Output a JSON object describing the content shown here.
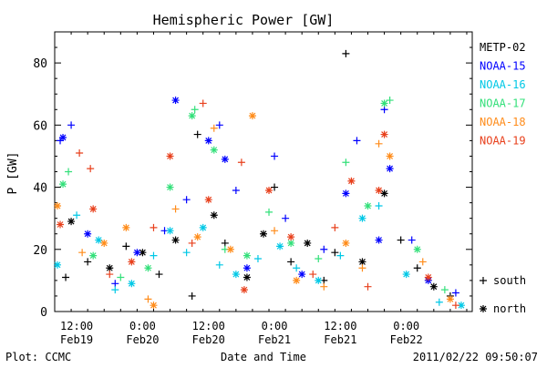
{
  "chart_data": {
    "type": "scatter",
    "title": "Hemispheric Power [GW]",
    "xlabel": "Date and Time",
    "ylabel": "P [GW]",
    "ylim": [
      0,
      90
    ],
    "xlim": [
      "2011-02-19 08:00",
      "2011-02-22 12:00"
    ],
    "y_ticks": [
      0,
      20,
      40,
      60,
      80
    ],
    "x_ticks": [
      {
        "at": "2011-02-19 12:00",
        "line1": "12:00",
        "line2": "Feb19"
      },
      {
        "at": "2011-02-20 00:00",
        "line1": "0:00",
        "line2": "Feb20"
      },
      {
        "at": "2011-02-20 12:00",
        "line1": "12:00",
        "line2": "Feb20"
      },
      {
        "at": "2011-02-21 00:00",
        "line1": "0:00",
        "line2": "Feb21"
      },
      {
        "at": "2011-02-21 12:00",
        "line1": "12:00",
        "line2": "Feb21"
      },
      {
        "at": "2011-02-22 00:00",
        "line1": "0:00",
        "line2": "Feb22"
      }
    ],
    "grid": false,
    "legend_position": "right",
    "marker_legend": [
      {
        "symbol": "+",
        "label": "south"
      },
      {
        "symbol": "*",
        "label": "north"
      }
    ],
    "series": [
      {
        "name": "METP-02",
        "color": "#000000",
        "points": [
          {
            "x": "2011-02-19 10:00",
            "y": 11,
            "m": "+"
          },
          {
            "x": "2011-02-19 11:00",
            "y": 29,
            "m": "*"
          },
          {
            "x": "2011-02-19 14:00",
            "y": 16,
            "m": "+"
          },
          {
            "x": "2011-02-19 18:00",
            "y": 14,
            "m": "*"
          },
          {
            "x": "2011-02-19 21:00",
            "y": 21,
            "m": "+"
          },
          {
            "x": "2011-02-20 00:00",
            "y": 19,
            "m": "*"
          },
          {
            "x": "2011-02-20 03:00",
            "y": 12,
            "m": "+"
          },
          {
            "x": "2011-02-20 06:00",
            "y": 23,
            "m": "*"
          },
          {
            "x": "2011-02-20 09:00",
            "y": 5,
            "m": "+"
          },
          {
            "x": "2011-02-20 10:00",
            "y": 57,
            "m": "+"
          },
          {
            "x": "2011-02-20 13:00",
            "y": 31,
            "m": "*"
          },
          {
            "x": "2011-02-20 15:00",
            "y": 22,
            "m": "+"
          },
          {
            "x": "2011-02-20 19:00",
            "y": 11,
            "m": "*"
          },
          {
            "x": "2011-02-20 22:00",
            "y": 25,
            "m": "*"
          },
          {
            "x": "2011-02-21 00:00",
            "y": 40,
            "m": "+"
          },
          {
            "x": "2011-02-21 03:00",
            "y": 16,
            "m": "+"
          },
          {
            "x": "2011-02-21 06:00",
            "y": 22,
            "m": "*"
          },
          {
            "x": "2011-02-21 09:00",
            "y": 10,
            "m": "+"
          },
          {
            "x": "2011-02-21 11:00",
            "y": 19,
            "m": "+"
          },
          {
            "x": "2011-02-21 13:00",
            "y": 83,
            "m": "+"
          },
          {
            "x": "2011-02-21 16:00",
            "y": 16,
            "m": "*"
          },
          {
            "x": "2011-02-21 20:00",
            "y": 38,
            "m": "*"
          },
          {
            "x": "2011-02-21 23:00",
            "y": 23,
            "m": "+"
          },
          {
            "x": "2011-02-22 02:00",
            "y": 14,
            "m": "+"
          },
          {
            "x": "2011-02-22 05:00",
            "y": 8,
            "m": "*"
          },
          {
            "x": "2011-02-22 08:00",
            "y": 5,
            "m": "+"
          }
        ]
      },
      {
        "name": "NOAA-15",
        "color": "#0000ff",
        "points": [
          {
            "x": "2011-02-19 09:00",
            "y": 55,
            "m": "+"
          },
          {
            "x": "2011-02-19 09:30",
            "y": 56,
            "m": "*"
          },
          {
            "x": "2011-02-19 11:00",
            "y": 60,
            "m": "+"
          },
          {
            "x": "2011-02-19 14:00",
            "y": 25,
            "m": "*"
          },
          {
            "x": "2011-02-19 19:00",
            "y": 9,
            "m": "+"
          },
          {
            "x": "2011-02-19 23:00",
            "y": 19,
            "m": "*"
          },
          {
            "x": "2011-02-20 04:00",
            "y": 26,
            "m": "+"
          },
          {
            "x": "2011-02-20 06:00",
            "y": 68,
            "m": "*"
          },
          {
            "x": "2011-02-20 08:00",
            "y": 36,
            "m": "+"
          },
          {
            "x": "2011-02-20 12:00",
            "y": 55,
            "m": "*"
          },
          {
            "x": "2011-02-20 14:00",
            "y": 60,
            "m": "+"
          },
          {
            "x": "2011-02-20 15:00",
            "y": 49,
            "m": "*"
          },
          {
            "x": "2011-02-20 17:00",
            "y": 39,
            "m": "+"
          },
          {
            "x": "2011-02-20 19:00",
            "y": 14,
            "m": "*"
          },
          {
            "x": "2011-02-21 00:00",
            "y": 50,
            "m": "+"
          },
          {
            "x": "2011-02-21 02:00",
            "y": 30,
            "m": "+"
          },
          {
            "x": "2011-02-21 05:00",
            "y": 12,
            "m": "*"
          },
          {
            "x": "2011-02-21 09:00",
            "y": 20,
            "m": "+"
          },
          {
            "x": "2011-02-21 13:00",
            "y": 38,
            "m": "*"
          },
          {
            "x": "2011-02-21 15:00",
            "y": 55,
            "m": "+"
          },
          {
            "x": "2011-02-21 19:00",
            "y": 23,
            "m": "*"
          },
          {
            "x": "2011-02-21 20:00",
            "y": 65,
            "m": "+"
          },
          {
            "x": "2011-02-21 21:00",
            "y": 46,
            "m": "*"
          },
          {
            "x": "2011-02-22 01:00",
            "y": 23,
            "m": "+"
          },
          {
            "x": "2011-02-22 04:00",
            "y": 10,
            "m": "*"
          },
          {
            "x": "2011-02-22 09:00",
            "y": 6,
            "m": "+"
          }
        ]
      },
      {
        "name": "NOAA-16",
        "color": "#00c8e6",
        "points": [
          {
            "x": "2011-02-19 08:30",
            "y": 15,
            "m": "*"
          },
          {
            "x": "2011-02-19 12:00",
            "y": 31,
            "m": "+"
          },
          {
            "x": "2011-02-19 16:00",
            "y": 23,
            "m": "*"
          },
          {
            "x": "2011-02-19 19:00",
            "y": 7,
            "m": "+"
          },
          {
            "x": "2011-02-19 22:00",
            "y": 9,
            "m": "*"
          },
          {
            "x": "2011-02-20 02:00",
            "y": 18,
            "m": "+"
          },
          {
            "x": "2011-02-20 05:00",
            "y": 26,
            "m": "*"
          },
          {
            "x": "2011-02-20 08:00",
            "y": 19,
            "m": "+"
          },
          {
            "x": "2011-02-20 11:00",
            "y": 27,
            "m": "*"
          },
          {
            "x": "2011-02-20 14:00",
            "y": 15,
            "m": "+"
          },
          {
            "x": "2011-02-20 17:00",
            "y": 12,
            "m": "*"
          },
          {
            "x": "2011-02-20 21:00",
            "y": 17,
            "m": "+"
          },
          {
            "x": "2011-02-21 01:00",
            "y": 21,
            "m": "*"
          },
          {
            "x": "2011-02-21 04:00",
            "y": 14,
            "m": "+"
          },
          {
            "x": "2011-02-21 08:00",
            "y": 10,
            "m": "*"
          },
          {
            "x": "2011-02-21 12:00",
            "y": 18,
            "m": "+"
          },
          {
            "x": "2011-02-21 16:00",
            "y": 30,
            "m": "*"
          },
          {
            "x": "2011-02-21 19:00",
            "y": 34,
            "m": "+"
          },
          {
            "x": "2011-02-22 00:00",
            "y": 12,
            "m": "*"
          },
          {
            "x": "2011-02-22 06:00",
            "y": 3,
            "m": "+"
          },
          {
            "x": "2011-02-22 10:00",
            "y": 2,
            "m": "*"
          }
        ]
      },
      {
        "name": "NOAA-17",
        "color": "#33e07a",
        "points": [
          {
            "x": "2011-02-19 09:30",
            "y": 41,
            "m": "*"
          },
          {
            "x": "2011-02-19 10:30",
            "y": 45,
            "m": "+"
          },
          {
            "x": "2011-02-19 15:00",
            "y": 18,
            "m": "*"
          },
          {
            "x": "2011-02-19 20:00",
            "y": 11,
            "m": "+"
          },
          {
            "x": "2011-02-20 01:00",
            "y": 14,
            "m": "*"
          },
          {
            "x": "2011-02-20 05:00",
            "y": 40,
            "m": "*"
          },
          {
            "x": "2011-02-20 09:00",
            "y": 63,
            "m": "*"
          },
          {
            "x": "2011-02-20 09:30",
            "y": 65,
            "m": "+"
          },
          {
            "x": "2011-02-20 13:00",
            "y": 52,
            "m": "*"
          },
          {
            "x": "2011-02-20 15:00",
            "y": 20,
            "m": "+"
          },
          {
            "x": "2011-02-20 19:00",
            "y": 18,
            "m": "*"
          },
          {
            "x": "2011-02-20 23:00",
            "y": 32,
            "m": "+"
          },
          {
            "x": "2011-02-21 03:00",
            "y": 22,
            "m": "*"
          },
          {
            "x": "2011-02-21 08:00",
            "y": 17,
            "m": "+"
          },
          {
            "x": "2011-02-21 13:00",
            "y": 48,
            "m": "+"
          },
          {
            "x": "2011-02-21 17:00",
            "y": 34,
            "m": "*"
          },
          {
            "x": "2011-02-21 20:00",
            "y": 67,
            "m": "*"
          },
          {
            "x": "2011-02-21 21:00",
            "y": 68,
            "m": "+"
          },
          {
            "x": "2011-02-22 02:00",
            "y": 20,
            "m": "*"
          },
          {
            "x": "2011-02-22 07:00",
            "y": 7,
            "m": "+"
          }
        ]
      },
      {
        "name": "NOAA-18",
        "color": "#ff8c1a",
        "points": [
          {
            "x": "2011-02-19 08:30",
            "y": 34,
            "m": "*"
          },
          {
            "x": "2011-02-19 13:00",
            "y": 19,
            "m": "+"
          },
          {
            "x": "2011-02-19 17:00",
            "y": 22,
            "m": "*"
          },
          {
            "x": "2011-02-19 21:00",
            "y": 27,
            "m": "*"
          },
          {
            "x": "2011-02-20 01:00",
            "y": 4,
            "m": "+"
          },
          {
            "x": "2011-02-20 02:00",
            "y": 2,
            "m": "*"
          },
          {
            "x": "2011-02-20 06:00",
            "y": 33,
            "m": "+"
          },
          {
            "x": "2011-02-20 10:00",
            "y": 24,
            "m": "*"
          },
          {
            "x": "2011-02-20 13:00",
            "y": 59,
            "m": "+"
          },
          {
            "x": "2011-02-20 16:00",
            "y": 20,
            "m": "*"
          },
          {
            "x": "2011-02-20 20:00",
            "y": 63,
            "m": "*"
          },
          {
            "x": "2011-02-21 00:00",
            "y": 26,
            "m": "+"
          },
          {
            "x": "2011-02-21 04:00",
            "y": 10,
            "m": "*"
          },
          {
            "x": "2011-02-21 09:00",
            "y": 8,
            "m": "+"
          },
          {
            "x": "2011-02-21 13:00",
            "y": 22,
            "m": "*"
          },
          {
            "x": "2011-02-21 16:00",
            "y": 14,
            "m": "+"
          },
          {
            "x": "2011-02-21 19:00",
            "y": 54,
            "m": "+"
          },
          {
            "x": "2011-02-21 21:00",
            "y": 50,
            "m": "*"
          },
          {
            "x": "2011-02-22 03:00",
            "y": 16,
            "m": "+"
          },
          {
            "x": "2011-02-22 08:00",
            "y": 4,
            "m": "*"
          }
        ]
      },
      {
        "name": "NOAA-19",
        "color": "#e8401c",
        "points": [
          {
            "x": "2011-02-19 09:00",
            "y": 28,
            "m": "*"
          },
          {
            "x": "2011-02-19 12:30",
            "y": 51,
            "m": "+"
          },
          {
            "x": "2011-02-19 14:30",
            "y": 46,
            "m": "+"
          },
          {
            "x": "2011-02-19 15:00",
            "y": 33,
            "m": "*"
          },
          {
            "x": "2011-02-19 18:00",
            "y": 12,
            "m": "+"
          },
          {
            "x": "2011-02-19 22:00",
            "y": 16,
            "m": "*"
          },
          {
            "x": "2011-02-20 02:00",
            "y": 27,
            "m": "+"
          },
          {
            "x": "2011-02-20 05:00",
            "y": 50,
            "m": "*"
          },
          {
            "x": "2011-02-20 09:00",
            "y": 22,
            "m": "+"
          },
          {
            "x": "2011-02-20 11:00",
            "y": 67,
            "m": "+"
          },
          {
            "x": "2011-02-20 12:00",
            "y": 36,
            "m": "*"
          },
          {
            "x": "2011-02-20 18:00",
            "y": 48,
            "m": "+"
          },
          {
            "x": "2011-02-20 18:30",
            "y": 7,
            "m": "*"
          },
          {
            "x": "2011-02-20 23:00",
            "y": 39,
            "m": "*"
          },
          {
            "x": "2011-02-21 03:00",
            "y": 24,
            "m": "*"
          },
          {
            "x": "2011-02-21 07:00",
            "y": 12,
            "m": "+"
          },
          {
            "x": "2011-02-21 11:00",
            "y": 27,
            "m": "+"
          },
          {
            "x": "2011-02-21 14:00",
            "y": 42,
            "m": "*"
          },
          {
            "x": "2011-02-21 17:00",
            "y": 8,
            "m": "+"
          },
          {
            "x": "2011-02-21 19:00",
            "y": 39,
            "m": "*"
          },
          {
            "x": "2011-02-21 20:00",
            "y": 57,
            "m": "*"
          },
          {
            "x": "2011-02-22 04:00",
            "y": 11,
            "m": "*"
          },
          {
            "x": "2011-02-22 09:00",
            "y": 2,
            "m": "+"
          }
        ]
      }
    ]
  },
  "footer": {
    "plot_credit": "Plot: CCMC",
    "timestamp": "2011/02/22 09:50:07"
  }
}
